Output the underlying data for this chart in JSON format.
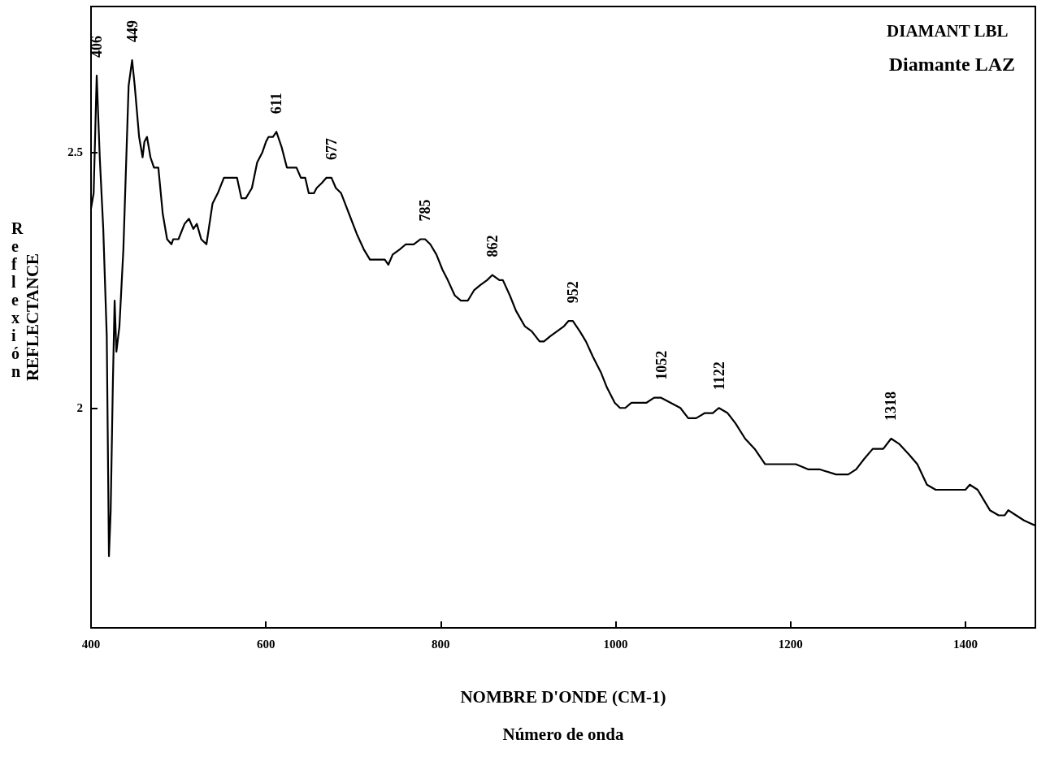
{
  "chart_data": {
    "type": "line",
    "title": "DIAMANT LBL",
    "subtitle": "Diamante LAZ",
    "xlabel": "NOMBRE D'ONDE (CM-1)\nNúmero de onda",
    "ylabel": "REFLECTANCE",
    "x": [
      400,
      403,
      406.5,
      410,
      414,
      418,
      420.5,
      422.5,
      425,
      427,
      429,
      432.5,
      437,
      443,
      447,
      450,
      455,
      459,
      461,
      464,
      468,
      472,
      477,
      482,
      487,
      492,
      494,
      500,
      507,
      512,
      517,
      521,
      526,
      532,
      539,
      545,
      552,
      561,
      567,
      572,
      577,
      584,
      590,
      596,
      600,
      603,
      608,
      612,
      618,
      624,
      630,
      635,
      640,
      645,
      649,
      655,
      658,
      664,
      669,
      675,
      680,
      686,
      695,
      704,
      712,
      719,
      729,
      736,
      740,
      745,
      753,
      760,
      769,
      777,
      782,
      788,
      795,
      802,
      808,
      816,
      823,
      831,
      838,
      845,
      853,
      859,
      867,
      871,
      879,
      886,
      896,
      904,
      913,
      918,
      925,
      933,
      941,
      946,
      951,
      959,
      966,
      974,
      983,
      990,
      999,
      1005,
      1011,
      1018,
      1026,
      1035,
      1044,
      1052,
      1063,
      1074,
      1083,
      1092,
      1102,
      1111,
      1118,
      1128,
      1137,
      1148,
      1159,
      1171,
      1178,
      1189,
      1198,
      1206,
      1220,
      1233,
      1252,
      1266,
      1275,
      1284,
      1294,
      1306,
      1315,
      1324,
      1335,
      1345,
      1356,
      1366,
      1377,
      1391,
      1400,
      1405,
      1414,
      1421,
      1428,
      1438,
      1445,
      1449,
      1458,
      1467,
      1480
    ],
    "series": [
      {
        "color": "#000000",
        "values": [
          2.39,
          2.42,
          2.65,
          2.49,
          2.35,
          2.14,
          1.71,
          1.8,
          2.05,
          2.21,
          2.11,
          2.16,
          2.31,
          2.63,
          2.68,
          2.63,
          2.53,
          2.49,
          2.52,
          2.53,
          2.49,
          2.47,
          2.47,
          2.38,
          2.33,
          2.32,
          2.33,
          2.33,
          2.36,
          2.37,
          2.35,
          2.36,
          2.33,
          2.32,
          2.4,
          2.42,
          2.45,
          2.45,
          2.45,
          2.41,
          2.41,
          2.43,
          2.48,
          2.5,
          2.52,
          2.53,
          2.53,
          2.54,
          2.51,
          2.47,
          2.47,
          2.47,
          2.45,
          2.45,
          2.42,
          2.42,
          2.43,
          2.44,
          2.45,
          2.45,
          2.43,
          2.42,
          2.38,
          2.34,
          2.31,
          2.29,
          2.29,
          2.29,
          2.28,
          2.3,
          2.31,
          2.32,
          2.32,
          2.33,
          2.33,
          2.32,
          2.3,
          2.27,
          2.25,
          2.22,
          2.21,
          2.21,
          2.23,
          2.24,
          2.25,
          2.26,
          2.25,
          2.25,
          2.22,
          2.19,
          2.16,
          2.15,
          2.13,
          2.13,
          2.14,
          2.15,
          2.16,
          2.17,
          2.17,
          2.15,
          2.13,
          2.1,
          2.07,
          2.04,
          2.01,
          2.0,
          2.0,
          2.01,
          2.01,
          2.01,
          2.02,
          2.02,
          2.01,
          2.0,
          1.98,
          1.98,
          1.99,
          1.99,
          2.0,
          1.99,
          1.97,
          1.94,
          1.92,
          1.89,
          1.89,
          1.89,
          1.89,
          1.89,
          1.88,
          1.88,
          1.87,
          1.87,
          1.88,
          1.9,
          1.92,
          1.92,
          1.94,
          1.93,
          1.91,
          1.89,
          1.85,
          1.84,
          1.84,
          1.84,
          1.84,
          1.85,
          1.84,
          1.82,
          1.8,
          1.79,
          1.79,
          1.8,
          1.79,
          1.78,
          1.77
        ]
      }
    ],
    "xlim": [
      400,
      1480
    ],
    "xticks": [
      400,
      600,
      800,
      1000,
      1200,
      1400
    ],
    "ylim": [
      1.57,
      2.785
    ],
    "yticks": [
      2,
      2.5
    ],
    "grid": false,
    "marker": "none",
    "line_style": "solid",
    "annotations": [
      "Reflexión",
      {
        "text": "406",
        "x": 406.5,
        "y": 2.65
      },
      {
        "text": "449",
        "x": 447,
        "y": 2.68
      },
      {
        "text": "611",
        "x": 612,
        "y": 2.54
      },
      {
        "text": "677",
        "x": 675,
        "y": 2.45
      },
      {
        "text": "785",
        "x": 782,
        "y": 2.33
      },
      {
        "text": "862",
        "x": 859,
        "y": 2.26
      },
      {
        "text": "952",
        "x": 951,
        "y": 2.17
      },
      {
        "text": "1052",
        "x": 1052,
        "y": 2.02
      },
      {
        "text": "1122",
        "x": 1118,
        "y": 2.0
      },
      {
        "text": "1318",
        "x": 1315,
        "y": 1.94
      }
    ]
  }
}
